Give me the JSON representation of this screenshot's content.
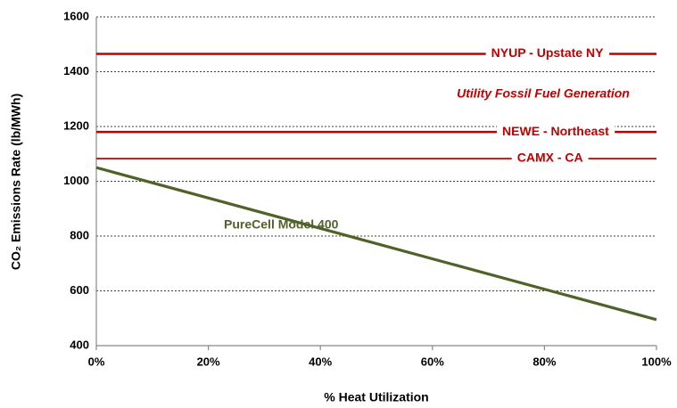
{
  "chart_data": {
    "type": "line",
    "x": [
      0,
      100
    ],
    "series": [
      {
        "name": "NYUP - Upstate NY",
        "color": "#c00000",
        "values": [
          1465,
          1465
        ]
      },
      {
        "name": "NEWE - Northeast",
        "color": "#c00000",
        "values": [
          1180,
          1180
        ]
      },
      {
        "name": "CAMX - CA",
        "color": "#c00000",
        "values": [
          1083,
          1083
        ]
      },
      {
        "name": "PureCell Model 400",
        "color": "#4f6228",
        "values": [
          1050,
          495
        ]
      }
    ],
    "annotation": "Utility Fossil Fuel Generation",
    "xlabel": "% Heat Utilization",
    "ylabel": "CO₂ Emissions Rate (lb/MWh)",
    "xlim": [
      0,
      100
    ],
    "xticks": [
      {
        "value": 0,
        "label": "0%"
      },
      {
        "value": 20,
        "label": "20%"
      },
      {
        "value": 40,
        "label": "40%"
      },
      {
        "value": 60,
        "label": "60%"
      },
      {
        "value": 80,
        "label": "80%"
      },
      {
        "value": 100,
        "label": "100%"
      }
    ],
    "ylim": [
      400,
      1600
    ],
    "yticks": [
      400,
      600,
      800,
      1000,
      1200,
      1400,
      1600
    ],
    "grid": true
  }
}
